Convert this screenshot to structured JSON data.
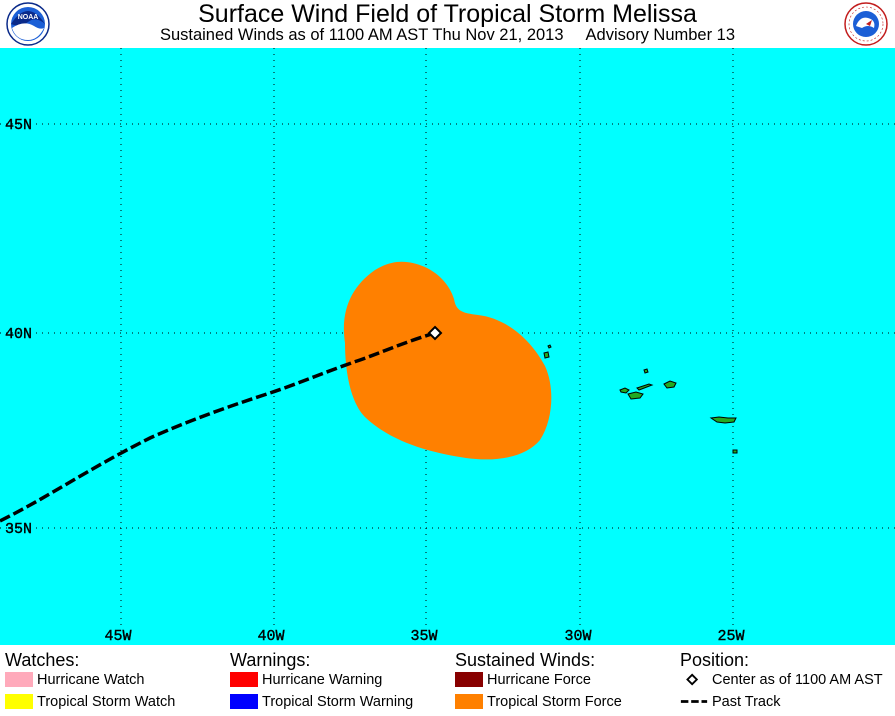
{
  "header": {
    "title": "Surface Wind Field of Tropical Storm Melissa",
    "subtitle_left": "Sustained Winds as of 1100 AM AST Thu Nov 21, 2013",
    "subtitle_right": "Advisory Number 13",
    "left_logo_text": "NOAA",
    "right_logo_text": "NATIONAL WEATHER SERVICE"
  },
  "map": {
    "background_color": "#00ffff",
    "land_color": "#22aa22",
    "lat_labels": [
      "45N",
      "40N",
      "35N"
    ],
    "lon_labels": [
      "45W",
      "40W",
      "35W",
      "30W",
      "25W"
    ],
    "storm_center_label": "Center as of 1100 AM AST",
    "wind_field_color": "#ff8000",
    "past_track_label": "Past Track"
  },
  "legend": {
    "watches": {
      "heading": "Watches:",
      "items": [
        {
          "label": "Hurricane Watch",
          "color": "#ffaabb"
        },
        {
          "label": "Tropical Storm Watch",
          "color": "#ffff00"
        }
      ]
    },
    "warnings": {
      "heading": "Warnings:",
      "items": [
        {
          "label": "Hurricane Warning",
          "color": "#ff0000"
        },
        {
          "label": "Tropical Storm Warning",
          "color": "#0000ff"
        }
      ]
    },
    "winds": {
      "heading": "Sustained Winds:",
      "items": [
        {
          "label": "Hurricane Force",
          "color": "#880000"
        },
        {
          "label": "Tropical Storm Force",
          "color": "#ff8000"
        }
      ]
    },
    "position": {
      "heading": "Position:",
      "center_label": "Center as of 1100 AM AST",
      "track_label": "Past Track"
    }
  }
}
